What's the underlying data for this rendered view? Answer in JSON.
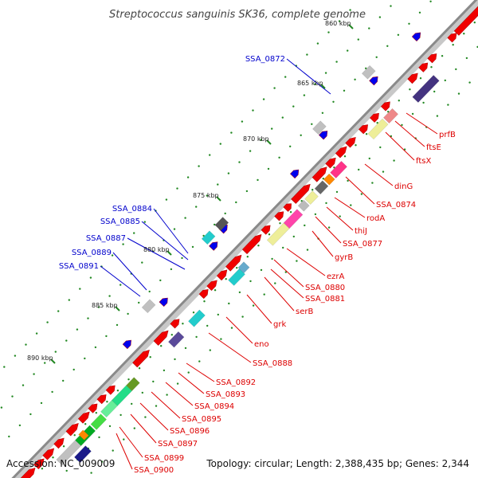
{
  "diagram": {
    "title": "Streptococcus sanguinis SK36, complete genome",
    "accession_text": "Accession: NC_009009",
    "summary_text": "Topology: circular; Length: 2,388,435 bp; Genes: 2,344",
    "colors": {
      "backbone": "#8a8a8a",
      "forward_cds": "#f00000",
      "reverse_gene": "#0000ee",
      "label_blue": "#0000cc",
      "label_red": "#dd0000",
      "tick_green": "#228822"
    },
    "kbp_markers": [
      "860 kbp",
      "865 kbp",
      "870 kbp",
      "875 kbp",
      "880 kbp",
      "885 kbp",
      "890 kbp"
    ],
    "left_labels": [
      "SSA_0872",
      "SSA_0884",
      "SSA_0885",
      "SSA_0887",
      "SSA_0889",
      "SSA_0891"
    ],
    "right_labels": [
      "prfB",
      "ftsE",
      "ftsX",
      "dinG",
      "SSA_0874",
      "rodA",
      "thiJ",
      "SSA_0877",
      "gyrB",
      "ezrA",
      "SSA_0880",
      "SSA_0881",
      "serB",
      "grk",
      "eno",
      "SSA_0888",
      "SSA_0892",
      "SSA_0893",
      "SSA_0894",
      "SSA_0895",
      "SSA_0896",
      "SSA_0897",
      "SSA_0899",
      "SSA_0900"
    ]
  }
}
